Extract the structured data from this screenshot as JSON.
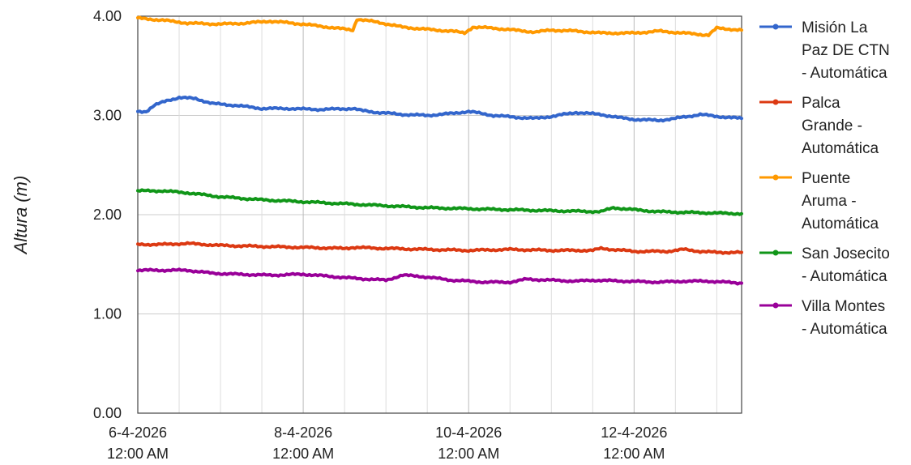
{
  "chart_data": {
    "type": "line",
    "ylabel": "Altura (m)",
    "xlabel": "",
    "title": "",
    "ylim": [
      0,
      4
    ],
    "xlim_days": [
      0,
      7.3
    ],
    "y_ticks": [
      "0.00",
      "1.00",
      "2.00",
      "3.00",
      "4.00"
    ],
    "x_ticks": [
      {
        "day": 0,
        "date": "6-4-2026",
        "time": "12:00 AM"
      },
      {
        "day": 2,
        "date": "8-4-2026",
        "time": "12:00 AM"
      },
      {
        "day": 4,
        "date": "10-4-2026",
        "time": "12:00 AM"
      },
      {
        "day": 6,
        "date": "12-4-2026",
        "time": "12:00 AM"
      }
    ],
    "grid": true,
    "legend_position": "right",
    "series": [
      {
        "name": "Misión La Paz DE CTN - Automática",
        "legend_lines": [
          "Misión La",
          "Paz DE CTN",
          "- Automática"
        ],
        "color": "#3366cc",
        "points": [
          [
            0,
            3.04
          ],
          [
            0.1,
            3.04
          ],
          [
            0.2,
            3.1
          ],
          [
            0.35,
            3.15
          ],
          [
            0.5,
            3.18
          ],
          [
            0.7,
            3.17
          ],
          [
            0.9,
            3.12
          ],
          [
            1.2,
            3.1
          ],
          [
            1.5,
            3.07
          ],
          [
            1.8,
            3.07
          ],
          [
            2.2,
            3.06
          ],
          [
            2.6,
            3.07
          ],
          [
            2.7,
            3.05
          ],
          [
            2.9,
            3.03
          ],
          [
            3.2,
            3.01
          ],
          [
            3.5,
            3.0
          ],
          [
            3.8,
            3.02
          ],
          [
            4.0,
            3.04
          ],
          [
            4.3,
            3.0
          ],
          [
            4.6,
            2.98
          ],
          [
            4.8,
            2.97
          ],
          [
            5.0,
            2.99
          ],
          [
            5.3,
            3.03
          ],
          [
            5.6,
            3.01
          ],
          [
            5.8,
            2.98
          ],
          [
            6.0,
            2.96
          ],
          [
            6.3,
            2.95
          ],
          [
            6.5,
            2.97
          ],
          [
            6.8,
            3.01
          ],
          [
            7.0,
            2.99
          ],
          [
            7.3,
            2.97
          ]
        ]
      },
      {
        "name": "Palca Grande - Automática",
        "legend_lines": [
          "Palca",
          "Grande -",
          "Automática"
        ],
        "color": "#dc3912",
        "points": [
          [
            0,
            1.7
          ],
          [
            0.3,
            1.7
          ],
          [
            0.6,
            1.71
          ],
          [
            1.0,
            1.69
          ],
          [
            1.5,
            1.68
          ],
          [
            2.0,
            1.67
          ],
          [
            2.5,
            1.66
          ],
          [
            2.6,
            1.67
          ],
          [
            3.0,
            1.66
          ],
          [
            3.5,
            1.65
          ],
          [
            4.0,
            1.64
          ],
          [
            4.5,
            1.65
          ],
          [
            5.0,
            1.64
          ],
          [
            5.5,
            1.64
          ],
          [
            5.6,
            1.66
          ],
          [
            6.0,
            1.63
          ],
          [
            6.4,
            1.63
          ],
          [
            6.6,
            1.65
          ],
          [
            6.8,
            1.63
          ],
          [
            7.0,
            1.62
          ],
          [
            7.3,
            1.62
          ]
        ]
      },
      {
        "name": "Puente Aruma - Automática",
        "legend_lines": [
          "Puente",
          "Aruma -",
          "Automática"
        ],
        "color": "#ff9900",
        "points": [
          [
            0,
            3.98
          ],
          [
            0.3,
            3.96
          ],
          [
            0.6,
            3.93
          ],
          [
            1.0,
            3.92
          ],
          [
            1.3,
            3.93
          ],
          [
            1.6,
            3.95
          ],
          [
            2.0,
            3.92
          ],
          [
            2.4,
            3.88
          ],
          [
            2.6,
            3.86
          ],
          [
            2.65,
            3.97
          ],
          [
            2.9,
            3.94
          ],
          [
            3.2,
            3.89
          ],
          [
            3.6,
            3.86
          ],
          [
            3.8,
            3.85
          ],
          [
            3.95,
            3.83
          ],
          [
            4.05,
            3.89
          ],
          [
            4.3,
            3.88
          ],
          [
            4.8,
            3.84
          ],
          [
            5.0,
            3.86
          ],
          [
            5.3,
            3.85
          ],
          [
            5.6,
            3.83
          ],
          [
            6.0,
            3.83
          ],
          [
            6.3,
            3.85
          ],
          [
            6.6,
            3.83
          ],
          [
            6.9,
            3.81
          ],
          [
            7.0,
            3.88
          ],
          [
            7.3,
            3.86
          ]
        ]
      },
      {
        "name": "San Josecito - Automática",
        "legend_lines": [
          "San Josecito",
          "- Automática"
        ],
        "color": "#109618",
        "points": [
          [
            0,
            2.24
          ],
          [
            0.3,
            2.24
          ],
          [
            0.6,
            2.22
          ],
          [
            1.0,
            2.18
          ],
          [
            1.5,
            2.15
          ],
          [
            2.0,
            2.13
          ],
          [
            2.5,
            2.11
          ],
          [
            3.0,
            2.09
          ],
          [
            3.5,
            2.07
          ],
          [
            4.0,
            2.06
          ],
          [
            4.5,
            2.05
          ],
          [
            5.0,
            2.04
          ],
          [
            5.6,
            2.03
          ],
          [
            5.75,
            2.07
          ],
          [
            6.0,
            2.05
          ],
          [
            6.3,
            2.03
          ],
          [
            6.8,
            2.02
          ],
          [
            7.3,
            2.01
          ]
        ]
      },
      {
        "name": "Villa Montes - Automática",
        "legend_lines": [
          "Villa Montes",
          "- Automática"
        ],
        "color": "#990099",
        "points": [
          [
            0,
            1.44
          ],
          [
            0.3,
            1.44
          ],
          [
            0.6,
            1.44
          ],
          [
            0.9,
            1.41
          ],
          [
            1.2,
            1.4
          ],
          [
            1.6,
            1.39
          ],
          [
            2.0,
            1.4
          ],
          [
            2.3,
            1.38
          ],
          [
            2.6,
            1.36
          ],
          [
            3.0,
            1.34
          ],
          [
            3.2,
            1.39
          ],
          [
            3.4,
            1.38
          ],
          [
            3.8,
            1.34
          ],
          [
            4.2,
            1.32
          ],
          [
            4.5,
            1.32
          ],
          [
            4.7,
            1.35
          ],
          [
            5.0,
            1.34
          ],
          [
            5.3,
            1.33
          ],
          [
            5.5,
            1.34
          ],
          [
            5.9,
            1.33
          ],
          [
            6.3,
            1.32
          ],
          [
            6.6,
            1.33
          ],
          [
            6.9,
            1.33
          ],
          [
            7.3,
            1.31
          ]
        ]
      }
    ]
  }
}
